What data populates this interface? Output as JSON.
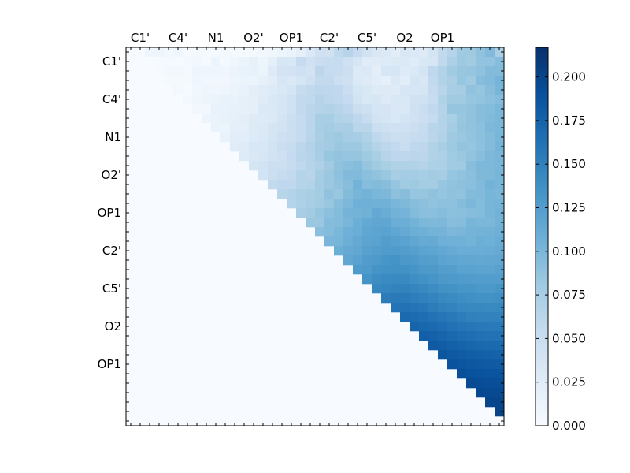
{
  "chart_data": {
    "type": "heatmap",
    "title": "",
    "xlabel": "",
    "ylabel": "",
    "x_tick_labels": [
      "C1'",
      "C4'",
      "N1",
      "O2'",
      "OP1",
      "C2'",
      "C5'",
      "O2",
      "OP1"
    ],
    "y_tick_labels": [
      "C1'",
      "C4'",
      "N1",
      "O2'",
      "OP1",
      "C2'",
      "C5'",
      "O2",
      "OP1"
    ],
    "grid_size": 40,
    "colormap": "Blues",
    "colorbar": {
      "vmin": 0.0,
      "vmax": 0.217,
      "ticks": [
        "0.000",
        "0.025",
        "0.050",
        "0.075",
        "0.100",
        "0.125",
        "0.150",
        "0.175",
        "0.200"
      ]
    },
    "upper_triangle_rows": [
      [
        0,
        1,
        1,
        0.5,
        0.8,
        0.1,
        0.3,
        0.4,
        0.4,
        0.5,
        0.3,
        0.2,
        0.5,
        0.6,
        0.9,
        1.1,
        1.4,
        2.0,
        3.0,
        4.4,
        4.3,
        5.8,
        6.6,
        5.4,
        4.2,
        3.2,
        3.1,
        2.3,
        3.4,
        3.0,
        2.7,
        3.9,
        5.7,
        6.6,
        8.1,
        8.1,
        8.9,
        9.7,
        7.3
      ],
      [
        0,
        0.2,
        0.4,
        0.2,
        0.5,
        0.7,
        0.2,
        1.1,
        0.3,
        0.9,
        1.3,
        1.9,
        1.1,
        2.1,
        3.6,
        3.3,
        5.4,
        4.4,
        4.9,
        5.3,
        5.5,
        4.5,
        3.7,
        2.5,
        2.6,
        2.8,
        2.9,
        3.0,
        2.6,
        3.3,
        3.6,
        5.8,
        7.2,
        8.2,
        7.8,
        8.7,
        8.7,
        9.4
      ],
      [
        0.2,
        0.5,
        0.6,
        0.3,
        1.0,
        1.0,
        1.0,
        0.8,
        1.2,
        1.6,
        1.7,
        1.3,
        2.7,
        4.0,
        4.0,
        4.5,
        4.1,
        6.1,
        5.5,
        5.3,
        4.7,
        2.9,
        3.0,
        2.2,
        3.6,
        3.5,
        2.8,
        3.0,
        3.9,
        5.9,
        6.8,
        8.0,
        8.4,
        8.6,
        8.9,
        9.6,
        9.6
      ],
      [
        0.3,
        0.3,
        0.3,
        0.8,
        0.6,
        0.6,
        0.6,
        1.1,
        1.3,
        1.2,
        1.8,
        2.3,
        3.5,
        3.1,
        3.8,
        4.5,
        5.6,
        5.6,
        4.8,
        4.5,
        3.1,
        2.7,
        2.3,
        1.8,
        3.0,
        2.4,
        3.8,
        3.4,
        5.6,
        6.8,
        7.3,
        8.5,
        8.1,
        9.4,
        9.7,
        10.3
      ],
      [
        0.5,
        0.2,
        0.6,
        1.0,
        0.9,
        1.0,
        1.3,
        1.6,
        2.2,
        2.5,
        2.8,
        3.3,
        3.7,
        5.2,
        5.8,
        6.1,
        6.0,
        5.9,
        5.0,
        3.8,
        3.3,
        2.7,
        2.7,
        2.6,
        3.5,
        3.5,
        3.7,
        5.4,
        6.4,
        7.5,
        7.6,
        8.8,
        8.6,
        9.3,
        10.2
      ],
      [
        0.5,
        0.9,
        1.1,
        1.2,
        1.5,
        1.6,
        1.9,
        2.0,
        2.6,
        3.2,
        3.6,
        4.4,
        5.6,
        5.8,
        6.6,
        6.1,
        5.9,
        5.4,
        4.1,
        3.3,
        3.5,
        2.7,
        3.3,
        3.3,
        4.2,
        4.3,
        5.2,
        6.9,
        7.9,
        8.0,
        8.5,
        8.7,
        9.1,
        9.4
      ],
      [
        0.7,
        0.7,
        1.5,
        1.5,
        1.7,
        1.9,
        2.0,
        3.0,
        3.0,
        3.5,
        4.3,
        5.7,
        6.2,
        6.5,
        6.8,
        6.6,
        6.0,
        5.0,
        4.6,
        3.7,
        3.7,
        3.2,
        3.2,
        4.4,
        4.9,
        5.8,
        6.6,
        8.6,
        8.6,
        8.8,
        9.3,
        9.5,
        10.0
      ],
      [
        1.1,
        1.4,
        1.7,
        1.8,
        2.2,
        2.7,
        2.8,
        3.0,
        3.9,
        4.7,
        5.4,
        6.2,
        7.5,
        7.5,
        6.8,
        6.5,
        6.0,
        5.2,
        4.1,
        3.8,
        3.3,
        3.9,
        4.4,
        4.7,
        5.5,
        6.7,
        7.4,
        8.4,
        8.9,
        9.3,
        9.7,
        10.0
      ],
      [
        1.4,
        1.3,
        2.0,
        2.0,
        2.9,
        3.0,
        3.7,
        4.0,
        4.8,
        5.4,
        6.2,
        7.5,
        7.7,
        7.3,
        7.5,
        6.3,
        6.3,
        4.7,
        4.5,
        4.4,
        4.4,
        4.8,
        5.2,
        6.4,
        6.6,
        7.7,
        8.6,
        8.8,
        9.1,
        9.9,
        10.0
      ],
      [
        1.5,
        2.3,
        2.4,
        2.8,
        3.0,
        3.9,
        4.5,
        4.7,
        5.5,
        6.4,
        7.3,
        8.0,
        8.2,
        7.6,
        7.5,
        6.9,
        5.9,
        5.2,
        4.7,
        5.0,
        5.2,
        5.5,
        6.2,
        6.8,
        8.1,
        8.3,
        8.7,
        9.1,
        9.6,
        10.2
      ],
      [
        2.5,
        2.6,
        3.4,
        3.4,
        4.1,
        4.9,
        5.3,
        6.1,
        6.7,
        7.6,
        7.8,
        8.3,
        8.2,
        8.2,
        7.4,
        6.6,
        6.0,
        5.6,
        5.1,
        5.9,
        6.0,
        6.8,
        7.5,
        8.2,
        8.7,
        8.6,
        9.0,
        9.6,
        10.3
      ],
      [
        2.8,
        3.2,
        3.6,
        4.1,
        4.5,
        5.4,
        6.3,
        6.5,
        7.5,
        8.5,
        8.7,
        8.6,
        8.6,
        8.1,
        7.4,
        6.6,
        6.0,
        6.0,
        6.2,
        6.1,
        6.8,
        7.1,
        8.0,
        8.3,
        8.7,
        9.3,
        9.9,
        10.1
      ],
      [
        3.8,
        4.1,
        4.7,
        4.8,
        5.2,
        5.9,
        6.5,
        7.0,
        7.9,
        8.9,
        9.2,
        9.5,
        8.6,
        7.9,
        7.4,
        6.9,
        6.9,
        6.8,
        6.6,
        7.1,
        7.2,
        7.9,
        8.1,
        9.3,
        9.9,
        9.9,
        10.1
      ],
      [
        4.1,
        4.7,
        5.2,
        5.6,
        6.5,
        6.4,
        7.6,
        8.3,
        9.0,
        9.7,
        9.7,
        9.2,
        8.8,
        8.4,
        7.5,
        7.7,
        7.7,
        7.5,
        7.8,
        7.6,
        8.5,
        8.8,
        9.2,
        9.8,
        9.8,
        10.2
      ],
      [
        5.6,
        5.9,
        5.9,
        6.6,
        6.7,
        7.7,
        8.3,
        8.8,
        9.3,
        10.4,
        9.4,
        9.6,
        9.3,
        8.6,
        8.0,
        8.2,
        7.7,
        7.7,
        8.5,
        8.8,
        9.1,
        9.2,
        9.7,
        10.4,
        10.2
      ],
      [
        6.4,
        6.7,
        7.2,
        7.4,
        7.7,
        8.8,
        8.4,
        9.6,
        10.2,
        10.4,
        10.0,
        9.9,
        9.1,
        9.3,
        8.5,
        8.6,
        8.9,
        8.6,
        8.9,
        8.8,
        9.6,
        9.7,
        10.2,
        10.0
      ],
      [
        6.6,
        7.1,
        7.5,
        7.8,
        8.4,
        9.3,
        9.9,
        10.7,
        10.7,
        10.6,
        10.6,
        10.1,
        9.8,
        9.3,
        9.1,
        8.8,
        9.1,
        9.0,
        9.5,
        9.9,
        9.5,
        10.2,
        10.3
      ],
      [
        7.5,
        7.8,
        8.5,
        9.1,
        9.5,
        10.3,
        10.4,
        10.6,
        11.3,
        11.0,
        10.5,
        10.3,
        9.6,
        9.2,
        9.2,
        9.4,
        9.1,
        9.2,
        9.4,
        9.6,
        10.2,
        10.5
      ],
      [
        8.4,
        8.3,
        9.5,
        9.6,
        10.1,
        10.8,
        11.3,
        11.6,
        11.6,
        10.9,
        10.8,
        10.4,
        9.9,
        9.8,
        9.9,
        9.3,
        9.4,
        10.2,
        10.0,
        10.0,
        10.5
      ],
      [
        9.2,
        9.5,
        10.0,
        10.7,
        10.9,
        11.6,
        11.8,
        12.0,
        11.6,
        11.2,
        10.8,
        10.7,
        10.4,
        10.3,
        9.9,
        10.1,
        10.3,
        10.4,
        10.5,
        10.7
      ],
      [
        10.1,
        10.2,
        10.8,
        11.3,
        11.8,
        12.0,
        12.5,
        12.2,
        12.0,
        11.5,
        11.1,
        11.2,
        10.7,
        10.6,
        10.6,
        10.4,
        10.8,
        10.7,
        11.0
      ],
      [
        10.8,
        11.2,
        11.5,
        12.1,
        12.4,
        12.6,
        12.7,
        12.5,
        12.2,
        11.9,
        11.7,
        11.4,
        11.1,
        10.9,
        10.9,
        10.9,
        11.0,
        11.2
      ],
      [
        11.5,
        12.0,
        12.6,
        12.8,
        13.2,
        13.4,
        13.0,
        12.9,
        12.4,
        12.3,
        11.9,
        11.7,
        11.5,
        11.5,
        11.4,
        11.5,
        11.6
      ],
      [
        12.7,
        12.8,
        13.4,
        13.5,
        13.6,
        13.6,
        13.3,
        12.9,
        12.9,
        12.5,
        12.4,
        12.0,
        12.0,
        11.9,
        11.8,
        12.1
      ],
      [
        13.4,
        13.9,
        14.1,
        14.2,
        14.2,
        13.8,
        13.6,
        13.3,
        13.0,
        12.8,
        12.7,
        12.6,
        12.5,
        12.5,
        12.5
      ],
      [
        14.5,
        14.6,
        14.8,
        14.9,
        14.6,
        14.3,
        14.0,
        13.6,
        13.5,
        13.2,
        13.2,
        13.0,
        13.0,
        13.2
      ],
      [
        15.4,
        15.5,
        15.5,
        15.2,
        15.0,
        14.7,
        14.3,
        14.1,
        13.9,
        13.7,
        13.6,
        13.6,
        13.7
      ],
      [
        16.1,
        16.2,
        16.0,
        15.8,
        15.3,
        15.0,
        14.8,
        14.5,
        14.3,
        14.3,
        14.2,
        14.3
      ],
      [
        16.9,
        16.7,
        16.5,
        16.2,
        15.9,
        15.6,
        15.3,
        15.0,
        14.9,
        14.9,
        14.9
      ],
      [
        17.4,
        17.1,
        16.9,
        16.6,
        16.3,
        16.0,
        15.8,
        15.6,
        15.5,
        15.5
      ],
      [
        17.8,
        17.6,
        17.3,
        17.0,
        16.7,
        16.5,
        16.3,
        16.2,
        16.2
      ],
      [
        18.2,
        18.0,
        17.7,
        17.5,
        17.2,
        17.0,
        16.9,
        16.8
      ],
      [
        18.6,
        18.3,
        18.1,
        17.9,
        17.7,
        17.6,
        17.5
      ],
      [
        18.9,
        18.7,
        18.5,
        18.3,
        18.2,
        18.1
      ],
      [
        19.2,
        19.0,
        18.9,
        18.8,
        18.7
      ],
      [
        19.5,
        19.3,
        19.2,
        19.2
      ],
      [
        19.7,
        19.6,
        19.6
      ],
      [
        19.9,
        19.9
      ],
      [
        20.1
      ]
    ]
  }
}
